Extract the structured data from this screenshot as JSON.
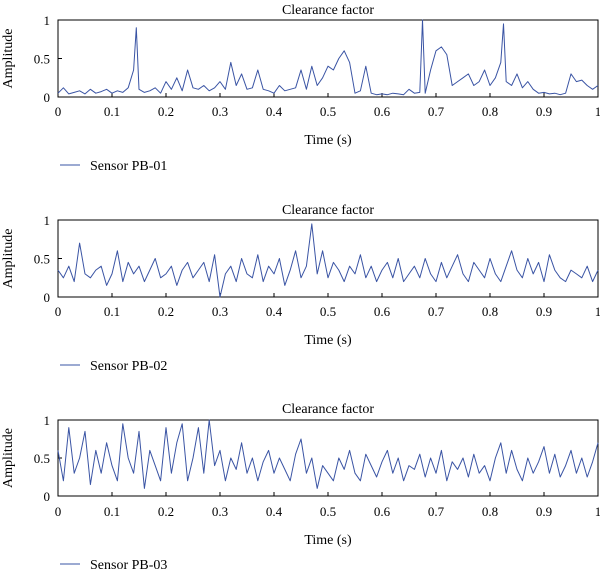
{
  "colors": {
    "line": "#3a54a4",
    "axis": "#000000"
  },
  "chart_data": [
    {
      "type": "line",
      "title": "Clearance factor",
      "xlabel": "Time (s)",
      "ylabel": "Amplitude",
      "xlim": [
        0,
        1
      ],
      "ylim": [
        0,
        1
      ],
      "xticks": [
        "0",
        "0.1",
        "0.2",
        "0.3",
        "0.4",
        "0.5",
        "0.6",
        "0.7",
        "0.8",
        "0.9",
        "1"
      ],
      "yticks": [
        "0",
        "0.5",
        "1"
      ],
      "legend": {
        "placement": "bottom-left"
      },
      "series": [
        {
          "name": "Sensor PB-01",
          "x": [
            0,
            0.01,
            0.02,
            0.03,
            0.04,
            0.05,
            0.06,
            0.07,
            0.08,
            0.09,
            0.1,
            0.11,
            0.12,
            0.13,
            0.14,
            0.145,
            0.15,
            0.16,
            0.17,
            0.18,
            0.19,
            0.2,
            0.21,
            0.22,
            0.23,
            0.24,
            0.25,
            0.26,
            0.27,
            0.28,
            0.29,
            0.3,
            0.31,
            0.32,
            0.33,
            0.34,
            0.35,
            0.36,
            0.37,
            0.38,
            0.39,
            0.4,
            0.41,
            0.42,
            0.43,
            0.44,
            0.45,
            0.46,
            0.47,
            0.48,
            0.49,
            0.5,
            0.51,
            0.52,
            0.53,
            0.54,
            0.55,
            0.56,
            0.57,
            0.58,
            0.59,
            0.6,
            0.61,
            0.62,
            0.63,
            0.64,
            0.65,
            0.66,
            0.67,
            0.675,
            0.68,
            0.69,
            0.7,
            0.71,
            0.72,
            0.73,
            0.74,
            0.75,
            0.76,
            0.77,
            0.78,
            0.79,
            0.8,
            0.81,
            0.82,
            0.825,
            0.83,
            0.84,
            0.85,
            0.86,
            0.87,
            0.88,
            0.89,
            0.9,
            0.91,
            0.92,
            0.93,
            0.94,
            0.95,
            0.96,
            0.97,
            0.98,
            0.99,
            1
          ],
          "y": [
            0.05,
            0.12,
            0.04,
            0.06,
            0.08,
            0.04,
            0.1,
            0.05,
            0.07,
            0.1,
            0.05,
            0.08,
            0.06,
            0.12,
            0.35,
            0.9,
            0.1,
            0.06,
            0.08,
            0.12,
            0.05,
            0.2,
            0.1,
            0.25,
            0.08,
            0.35,
            0.12,
            0.1,
            0.15,
            0.08,
            0.12,
            0.2,
            0.1,
            0.45,
            0.15,
            0.3,
            0.1,
            0.12,
            0.35,
            0.1,
            0.08,
            0.05,
            0.15,
            0.08,
            0.1,
            0.12,
            0.35,
            0.1,
            0.4,
            0.15,
            0.25,
            0.4,
            0.35,
            0.5,
            0.6,
            0.45,
            0.05,
            0.08,
            0.4,
            0.05,
            0.03,
            0.04,
            0.03,
            0.05,
            0.04,
            0.03,
            0.1,
            0.05,
            0.06,
            1.0,
            0.05,
            0.35,
            0.6,
            0.65,
            0.55,
            0.15,
            0.2,
            0.25,
            0.3,
            0.15,
            0.2,
            0.35,
            0.15,
            0.25,
            0.45,
            0.95,
            0.2,
            0.15,
            0.3,
            0.12,
            0.2,
            0.1,
            0.05,
            0.06,
            0.04,
            0.05,
            0.03,
            0.05,
            0.3,
            0.2,
            0.22,
            0.15,
            0.1,
            0.15
          ]
        }
      ]
    },
    {
      "type": "line",
      "title": "Clearance factor",
      "xlabel": "Time (s)",
      "ylabel": "Amplitude",
      "xlim": [
        0,
        1
      ],
      "ylim": [
        0,
        1
      ],
      "xticks": [
        "0",
        "0.1",
        "0.2",
        "0.3",
        "0.4",
        "0.5",
        "0.6",
        "0.7",
        "0.8",
        "0.9",
        "1"
      ],
      "yticks": [
        "0",
        "0.5",
        "1"
      ],
      "legend": {
        "placement": "bottom-left"
      },
      "series": [
        {
          "name": "Sensor PB-02",
          "x": [
            0,
            0.01,
            0.02,
            0.03,
            0.04,
            0.05,
            0.06,
            0.07,
            0.08,
            0.09,
            0.1,
            0.11,
            0.12,
            0.13,
            0.14,
            0.15,
            0.16,
            0.17,
            0.18,
            0.19,
            0.2,
            0.21,
            0.22,
            0.23,
            0.24,
            0.25,
            0.26,
            0.27,
            0.28,
            0.29,
            0.3,
            0.31,
            0.32,
            0.33,
            0.34,
            0.35,
            0.36,
            0.37,
            0.38,
            0.39,
            0.4,
            0.41,
            0.42,
            0.43,
            0.44,
            0.45,
            0.46,
            0.47,
            0.48,
            0.49,
            0.5,
            0.51,
            0.52,
            0.53,
            0.54,
            0.55,
            0.56,
            0.57,
            0.58,
            0.59,
            0.6,
            0.61,
            0.62,
            0.63,
            0.64,
            0.65,
            0.66,
            0.67,
            0.68,
            0.69,
            0.7,
            0.71,
            0.72,
            0.73,
            0.74,
            0.75,
            0.76,
            0.77,
            0.78,
            0.79,
            0.8,
            0.81,
            0.82,
            0.83,
            0.84,
            0.85,
            0.86,
            0.87,
            0.88,
            0.89,
            0.9,
            0.91,
            0.92,
            0.93,
            0.94,
            0.95,
            0.96,
            0.97,
            0.98,
            0.99,
            1
          ],
          "y": [
            0.35,
            0.25,
            0.4,
            0.2,
            0.7,
            0.3,
            0.25,
            0.35,
            0.4,
            0.15,
            0.3,
            0.6,
            0.2,
            0.45,
            0.3,
            0.4,
            0.2,
            0.35,
            0.5,
            0.25,
            0.3,
            0.4,
            0.15,
            0.35,
            0.45,
            0.25,
            0.35,
            0.45,
            0.2,
            0.55,
            0.0,
            0.3,
            0.4,
            0.2,
            0.5,
            0.3,
            0.25,
            0.55,
            0.2,
            0.4,
            0.3,
            0.5,
            0.15,
            0.35,
            0.6,
            0.25,
            0.4,
            0.95,
            0.3,
            0.6,
            0.25,
            0.45,
            0.35,
            0.2,
            0.4,
            0.3,
            0.55,
            0.25,
            0.4,
            0.2,
            0.35,
            0.45,
            0.25,
            0.5,
            0.2,
            0.3,
            0.4,
            0.25,
            0.5,
            0.3,
            0.2,
            0.45,
            0.25,
            0.4,
            0.55,
            0.3,
            0.2,
            0.45,
            0.35,
            0.25,
            0.5,
            0.3,
            0.2,
            0.4,
            0.6,
            0.35,
            0.25,
            0.5,
            0.3,
            0.45,
            0.2,
            0.55,
            0.35,
            0.25,
            0.2,
            0.35,
            0.3,
            0.25,
            0.4,
            0.2,
            0.35
          ]
        }
      ]
    },
    {
      "type": "line",
      "title": "Clearance factor",
      "xlabel": "Time (s)",
      "ylabel": "Amplitude",
      "xlim": [
        0,
        1
      ],
      "ylim": [
        0,
        1
      ],
      "xticks": [
        "0",
        "0.1",
        "0.2",
        "0.3",
        "0.4",
        "0.5",
        "0.6",
        "0.7",
        "0.8",
        "0.9",
        "1"
      ],
      "yticks": [
        "0",
        "0.5",
        "1"
      ],
      "legend": {
        "placement": "bottom-left"
      },
      "series": [
        {
          "name": "Sensor PB-03",
          "x": [
            0,
            0.01,
            0.02,
            0.03,
            0.04,
            0.05,
            0.06,
            0.07,
            0.08,
            0.09,
            0.1,
            0.11,
            0.12,
            0.13,
            0.14,
            0.15,
            0.16,
            0.17,
            0.18,
            0.19,
            0.2,
            0.21,
            0.22,
            0.23,
            0.24,
            0.25,
            0.26,
            0.27,
            0.28,
            0.29,
            0.3,
            0.31,
            0.32,
            0.33,
            0.34,
            0.35,
            0.36,
            0.37,
            0.38,
            0.39,
            0.4,
            0.41,
            0.42,
            0.43,
            0.44,
            0.45,
            0.46,
            0.47,
            0.48,
            0.49,
            0.5,
            0.51,
            0.52,
            0.53,
            0.54,
            0.55,
            0.56,
            0.57,
            0.58,
            0.59,
            0.6,
            0.61,
            0.62,
            0.63,
            0.64,
            0.65,
            0.66,
            0.67,
            0.68,
            0.69,
            0.7,
            0.71,
            0.72,
            0.73,
            0.74,
            0.75,
            0.76,
            0.77,
            0.78,
            0.79,
            0.8,
            0.81,
            0.82,
            0.83,
            0.84,
            0.85,
            0.86,
            0.87,
            0.88,
            0.89,
            0.9,
            0.91,
            0.92,
            0.93,
            0.94,
            0.95,
            0.96,
            0.97,
            0.98,
            0.99,
            1
          ],
          "y": [
            0.6,
            0.2,
            0.9,
            0.3,
            0.5,
            0.85,
            0.15,
            0.6,
            0.3,
            0.7,
            0.4,
            0.2,
            0.95,
            0.5,
            0.3,
            0.85,
            0.1,
            0.6,
            0.4,
            0.2,
            0.9,
            0.3,
            0.7,
            0.95,
            0.2,
            0.5,
            0.9,
            0.3,
            1.0,
            0.4,
            0.6,
            0.2,
            0.5,
            0.35,
            0.7,
            0.3,
            0.5,
            0.2,
            0.45,
            0.6,
            0.3,
            0.5,
            0.35,
            0.2,
            0.55,
            0.75,
            0.3,
            0.5,
            0.1,
            0.4,
            0.3,
            0.2,
            0.5,
            0.35,
            0.6,
            0.3,
            0.2,
            0.55,
            0.4,
            0.25,
            0.45,
            0.6,
            0.3,
            0.5,
            0.2,
            0.4,
            0.35,
            0.55,
            0.25,
            0.5,
            0.3,
            0.6,
            0.2,
            0.45,
            0.35,
            0.5,
            0.25,
            0.55,
            0.3,
            0.4,
            0.2,
            0.5,
            0.7,
            0.3,
            0.6,
            0.35,
            0.2,
            0.5,
            0.3,
            0.45,
            0.65,
            0.3,
            0.55,
            0.25,
            0.4,
            0.6,
            0.3,
            0.5,
            0.25,
            0.45,
            0.7
          ]
        }
      ]
    }
  ]
}
